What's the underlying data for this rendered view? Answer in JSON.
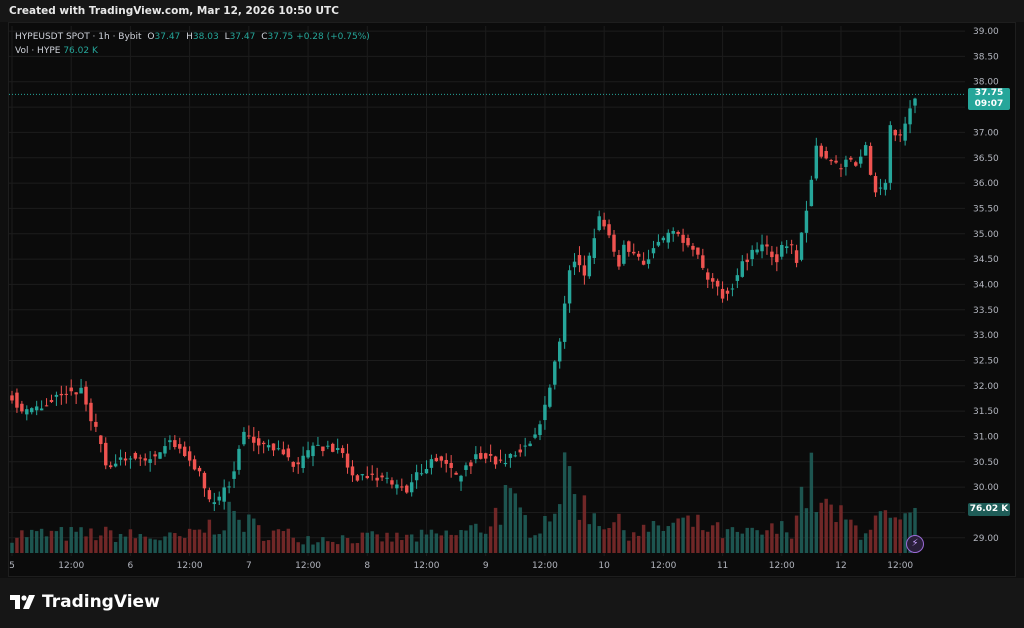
{
  "header": {
    "text": "Created with TradingView.com, Mar 12, 2026 10:50 UTC"
  },
  "legend": {
    "symbol": "HYPEUSDT SPOT · 1h · Bybit",
    "open_label": "O",
    "open": "37.47",
    "high_label": "H",
    "high": "38.03",
    "low_label": "L",
    "low": "37.47",
    "close_label": "C",
    "close": "37.75",
    "change": "+0.28 (+0.75%)",
    "vol_label": "Vol · HYPE",
    "vol": "76.02 K"
  },
  "price_tag": {
    "price": "37.75",
    "countdown": "09:07"
  },
  "volume_tag": "76.02 K",
  "footer": {
    "brand": "TradingView"
  },
  "colors": {
    "up": "#26a69a",
    "down": "#ef5350",
    "vol_up": "#1f5d58",
    "vol_down": "#7b2a2a",
    "grid": "#1c1c1c",
    "axis_text": "#b2b5be"
  },
  "chart_data": {
    "type": "candlestick",
    "ylim": [
      28.7,
      39.1
    ],
    "y_ticks": [
      "39.00",
      "38.50",
      "38.00",
      "37.50",
      "37.00",
      "36.50",
      "36.00",
      "35.50",
      "35.00",
      "34.50",
      "34.00",
      "33.50",
      "33.00",
      "32.50",
      "32.00",
      "31.50",
      "31.00",
      "30.50",
      "30.00",
      "29.50",
      "29.00"
    ],
    "x_ticks": [
      {
        "label": "5",
        "hour": 0
      },
      {
        "label": "12:00",
        "hour": 12
      },
      {
        "label": "6",
        "hour": 24
      },
      {
        "label": "12:00",
        "hour": 36
      },
      {
        "label": "7",
        "hour": 48
      },
      {
        "label": "12:00",
        "hour": 60
      },
      {
        "label": "8",
        "hour": 72
      },
      {
        "label": "12:00",
        "hour": 84
      },
      {
        "label": "9",
        "hour": 96
      },
      {
        "label": "12:00",
        "hour": 108
      },
      {
        "label": "10",
        "hour": 120
      },
      {
        "label": "12:00",
        "hour": 132
      },
      {
        "label": "11",
        "hour": 144
      },
      {
        "label": "12:00",
        "hour": 156
      },
      {
        "label": "12",
        "hour": 168
      },
      {
        "label": "12:00",
        "hour": 180
      }
    ],
    "last_price": 37.75,
    "close_path": [
      [
        0,
        31.8
      ],
      [
        2,
        31.5
      ],
      [
        4,
        31.5
      ],
      [
        6,
        31.6
      ],
      [
        8,
        31.7
      ],
      [
        10,
        31.9
      ],
      [
        12,
        31.85
      ],
      [
        14,
        31.9
      ],
      [
        16,
        31.3
      ],
      [
        18,
        30.9
      ],
      [
        19,
        30.5
      ],
      [
        20,
        30.4
      ],
      [
        22,
        30.5
      ],
      [
        24,
        30.6
      ],
      [
        26,
        30.5
      ],
      [
        28,
        30.6
      ],
      [
        30,
        30.7
      ],
      [
        32,
        30.9
      ],
      [
        34,
        30.8
      ],
      [
        36,
        30.5
      ],
      [
        38,
        30.3
      ],
      [
        39,
        29.9
      ],
      [
        40,
        29.7
      ],
      [
        42,
        29.8
      ],
      [
        44,
        30.1
      ],
      [
        45,
        30.4
      ],
      [
        46,
        30.8
      ],
      [
        47,
        31.0
      ],
      [
        48,
        31.0
      ],
      [
        50,
        30.9
      ],
      [
        52,
        30.8
      ],
      [
        53,
        30.7
      ],
      [
        55,
        30.7
      ],
      [
        57,
        30.4
      ],
      [
        58,
        30.4
      ],
      [
        60,
        30.7
      ],
      [
        62,
        30.8
      ],
      [
        64,
        30.8
      ],
      [
        66,
        30.7
      ],
      [
        67,
        30.7
      ],
      [
        68,
        30.4
      ],
      [
        69,
        30.3
      ],
      [
        70,
        30.2
      ],
      [
        72,
        30.2
      ],
      [
        74,
        30.2
      ],
      [
        76,
        30.1
      ],
      [
        78,
        30.0
      ],
      [
        80,
        29.9
      ],
      [
        82,
        30.3
      ],
      [
        84,
        30.4
      ],
      [
        86,
        30.6
      ],
      [
        88,
        30.5
      ],
      [
        90,
        30.2
      ],
      [
        92,
        30.4
      ],
      [
        94,
        30.6
      ],
      [
        96,
        30.6
      ],
      [
        98,
        30.5
      ],
      [
        100,
        30.5
      ],
      [
        102,
        30.7
      ],
      [
        104,
        30.8
      ],
      [
        106,
        31.0
      ],
      [
        108,
        31.6
      ],
      [
        110,
        32.5
      ],
      [
        111,
        32.8
      ],
      [
        112,
        33.7
      ],
      [
        113,
        34.3
      ],
      [
        114,
        34.5
      ],
      [
        116,
        34.2
      ],
      [
        118,
        35.0
      ],
      [
        119,
        35.3
      ],
      [
        120,
        35.2
      ],
      [
        122,
        34.6
      ],
      [
        123,
        34.4
      ],
      [
        124,
        34.8
      ],
      [
        126,
        34.6
      ],
      [
        128,
        34.4
      ],
      [
        130,
        34.7
      ],
      [
        132,
        34.9
      ],
      [
        134,
        35.0
      ],
      [
        136,
        34.9
      ],
      [
        137,
        34.8
      ],
      [
        139,
        34.5
      ],
      [
        140,
        34.3
      ],
      [
        142,
        34.0
      ],
      [
        144,
        33.8
      ],
      [
        146,
        34.0
      ],
      [
        148,
        34.4
      ],
      [
        150,
        34.6
      ],
      [
        152,
        34.8
      ],
      [
        154,
        34.6
      ],
      [
        155,
        34.5
      ],
      [
        156,
        34.8
      ],
      [
        158,
        34.7
      ],
      [
        159,
        34.4
      ],
      [
        160,
        35.0
      ],
      [
        161,
        35.5
      ],
      [
        162,
        36.1
      ],
      [
        163,
        36.7
      ],
      [
        164,
        36.6
      ],
      [
        166,
        36.4
      ],
      [
        168,
        36.3
      ],
      [
        169,
        36.5
      ],
      [
        171,
        36.3
      ],
      [
        173,
        36.7
      ],
      [
        174,
        36.1
      ],
      [
        175,
        35.9
      ],
      [
        177,
        36.0
      ],
      [
        178,
        37.1
      ],
      [
        180,
        36.9
      ],
      [
        181,
        37.2
      ],
      [
        182,
        37.5
      ],
      [
        183,
        37.75
      ]
    ],
    "volume_profile": [
      [
        0,
        0.25
      ],
      [
        20,
        0.25
      ],
      [
        30,
        0.2
      ],
      [
        35,
        0.2
      ],
      [
        40,
        0.35
      ],
      [
        45,
        0.5
      ],
      [
        50,
        0.3
      ],
      [
        60,
        0.2
      ],
      [
        70,
        0.2
      ],
      [
        80,
        0.2
      ],
      [
        90,
        0.25
      ],
      [
        96,
        0.35
      ],
      [
        100,
        0.7
      ],
      [
        105,
        0.35
      ],
      [
        108,
        0.45
      ],
      [
        111,
        0.85
      ],
      [
        113,
        1.0
      ],
      [
        116,
        0.6
      ],
      [
        120,
        0.45
      ],
      [
        125,
        0.3
      ],
      [
        130,
        0.3
      ],
      [
        135,
        0.4
      ],
      [
        140,
        0.35
      ],
      [
        145,
        0.25
      ],
      [
        150,
        0.25
      ],
      [
        155,
        0.3
      ],
      [
        158,
        0.35
      ],
      [
        160,
        0.75
      ],
      [
        162,
        0.95
      ],
      [
        164,
        0.6
      ],
      [
        168,
        0.45
      ],
      [
        172,
        0.3
      ],
      [
        175,
        0.45
      ],
      [
        178,
        0.4
      ],
      [
        180,
        0.35
      ],
      [
        183,
        0.45
      ]
    ]
  }
}
